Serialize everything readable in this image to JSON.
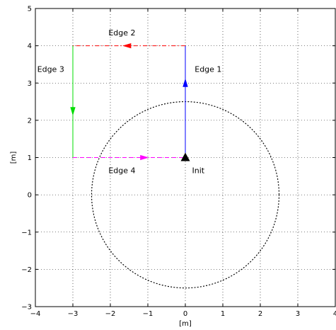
{
  "chart_data": {
    "type": "line",
    "xlabel": "[m]",
    "ylabel": "[m]",
    "xlim": [
      -4,
      4
    ],
    "ylim": [
      -3,
      5
    ],
    "xticks": [
      -4,
      -3,
      -2,
      -1,
      0,
      1,
      2,
      3,
      4
    ],
    "yticks": [
      -3,
      -2,
      -1,
      0,
      1,
      2,
      3,
      4,
      5
    ],
    "x_tick_labels": [
      "−4",
      "−3",
      "−2",
      "−1",
      "0",
      "1",
      "2",
      "3",
      "4"
    ],
    "y_tick_labels": [
      "−3",
      "−2",
      "−1",
      "0",
      "1",
      "2",
      "3",
      "4",
      "5"
    ],
    "grid": true,
    "series": [
      {
        "label": "Edge 1",
        "color": "#0000ff",
        "dash": "solid",
        "x": [
          0,
          0
        ],
        "y": [
          1,
          4
        ],
        "arrow_at": [
          0,
          3.0
        ],
        "arrow_dir": "up"
      },
      {
        "label": "Edge 2",
        "color": "#ff0000",
        "dash": "dashdot",
        "x": [
          0,
          -3
        ],
        "y": [
          4,
          4
        ],
        "arrow_at": [
          -1.55,
          4
        ],
        "arrow_dir": "left"
      },
      {
        "label": "Edge 3",
        "color": "#00dd00",
        "dash": "solid",
        "x": [
          -3,
          -3
        ],
        "y": [
          4,
          1
        ],
        "arrow_at": [
          -3,
          2.25
        ],
        "arrow_dir": "down"
      },
      {
        "label": "Edge 4",
        "color": "#ff00ff",
        "dash": "dashed",
        "x": [
          -3,
          0
        ],
        "y": [
          1,
          1
        ],
        "arrow_at": [
          -1.1,
          1
        ],
        "arrow_dir": "right"
      }
    ],
    "circle": {
      "cx": 0,
      "cy": 0,
      "r": 2.5,
      "color": "#000000",
      "style": "dotted"
    },
    "init_marker": {
      "x": 0,
      "y": 1,
      "label": "Init",
      "color": "#000000"
    },
    "annotations": [
      {
        "text": "Edge 1",
        "x": 0.25,
        "y": 3.3
      },
      {
        "text": "Edge 2",
        "x": -2.05,
        "y": 4.28
      },
      {
        "text": "Edge 3",
        "x": -3.95,
        "y": 3.3
      },
      {
        "text": "Edge 4",
        "x": -2.05,
        "y": 0.58
      },
      {
        "text": "Init",
        "x": 0.18,
        "y": 0.58
      }
    ]
  }
}
